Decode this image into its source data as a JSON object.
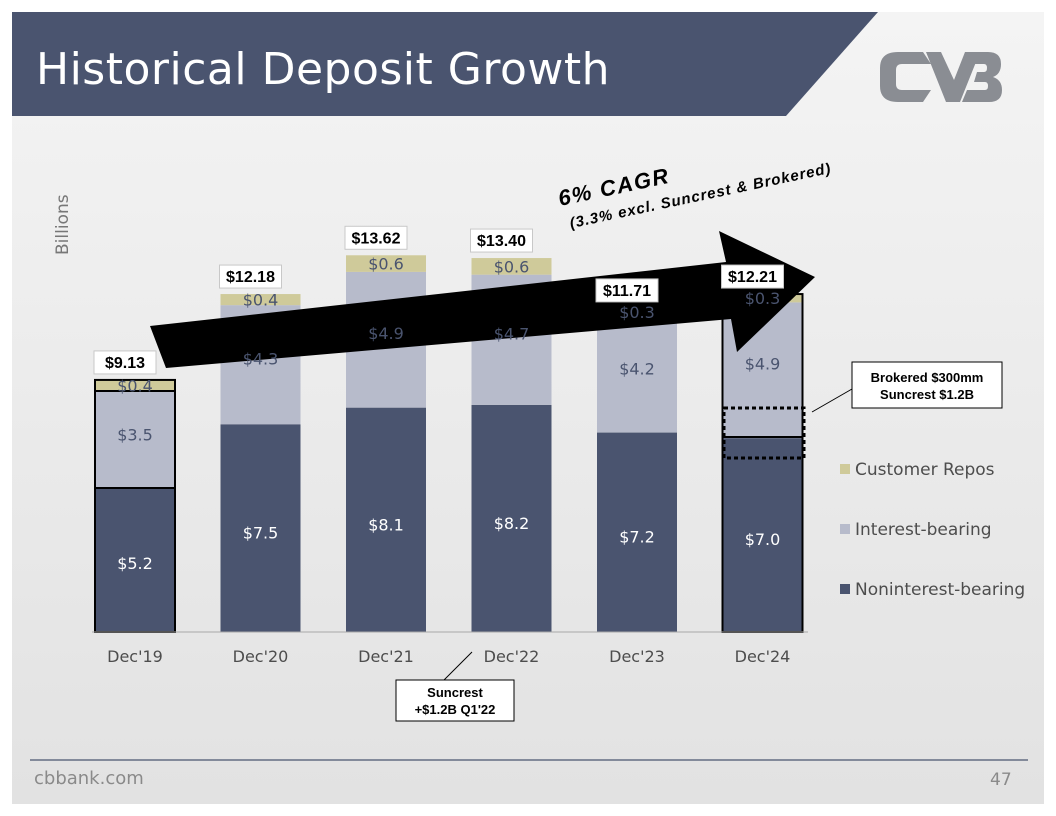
{
  "slide": {
    "title": "Historical Deposit Growth",
    "footer": "cbbank.com",
    "page_number": "47",
    "colors": {
      "banner": "#4a546f",
      "noninterest": "#4a546f",
      "interest": "#b7bbcb",
      "repos": "#cfca9a",
      "logo": "#8a8d93"
    }
  },
  "callouts": {
    "cagr_line1": "6% CAGR",
    "cagr_line2": "(3.3% excl. Suncrest & Brokered)",
    "brokered_line1": "Brokered $300mm",
    "brokered_line2": "Suncrest $1.2B",
    "suncrest_line1": "Suncrest",
    "suncrest_line2": "+$1.2B Q1'22"
  },
  "chart_data": {
    "type": "bar",
    "stacked": true,
    "ylabel": "Billions",
    "categories": [
      "Dec'19",
      "Dec'20",
      "Dec'21",
      "Dec'22",
      "Dec'23",
      "Dec'24"
    ],
    "series": [
      {
        "name": "Noninterest-bearing",
        "values": [
          5.2,
          7.5,
          8.1,
          8.2,
          7.2,
          7.0
        ],
        "labels": [
          "$5.2",
          "$7.5",
          "$8.1",
          "$8.2",
          "$7.2",
          "$7.0"
        ],
        "color": "#4a546f"
      },
      {
        "name": "Interest-bearing",
        "values": [
          3.5,
          4.3,
          4.9,
          4.7,
          4.2,
          4.9
        ],
        "labels": [
          "$3.5",
          "$4.3",
          "$4.9",
          "$4.7",
          "$4.2",
          "$4.9"
        ],
        "color": "#b7bbcb"
      },
      {
        "name": "Customer Repos",
        "values": [
          0.4,
          0.4,
          0.6,
          0.6,
          0.3,
          0.3
        ],
        "labels": [
          "$0.4",
          "$0.4",
          "$0.6",
          "$0.6",
          "$0.3",
          "$0.3"
        ],
        "color": "#cfca9a"
      }
    ],
    "totals": [
      "$9.13",
      "$12.18",
      "$13.62",
      "$13.40",
      "$11.71",
      "$12.21"
    ],
    "total_values": [
      9.13,
      12.18,
      13.62,
      13.4,
      11.71,
      12.21
    ],
    "legend_order": [
      "Customer Repos",
      "Interest-bearing",
      "Noninterest-bearing"
    ],
    "legend_position": "right",
    "grid": false
  }
}
